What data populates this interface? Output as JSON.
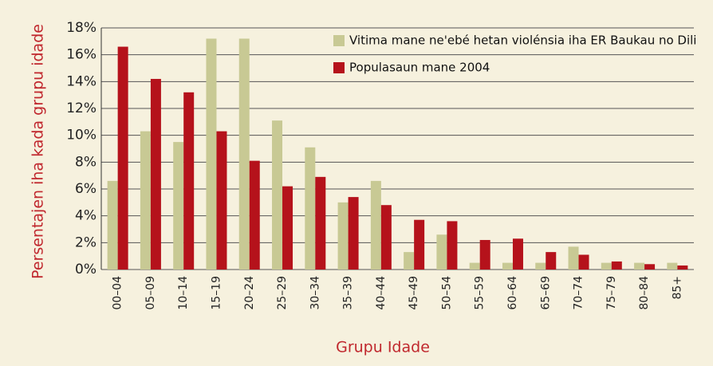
{
  "chart_data": {
    "type": "bar",
    "x_label": "Grupu Idade",
    "y_label": "Persentajen iha kada grupu idade",
    "categories": [
      "00–04",
      "05–09",
      "10–14",
      "15–19",
      "20–24",
      "25–29",
      "30–34",
      "35–39",
      "40–44",
      "45–49",
      "50–54",
      "55–59",
      "60–64",
      "65–69",
      "70–74",
      "75–79",
      "80–84",
      "85+"
    ],
    "series": [
      {
        "name": "Vitima mane ne'ebé hetan violénsia iha ER Baukau no Dili",
        "color": "#c8c994",
        "values": [
          6.6,
          10.3,
          9.5,
          17.2,
          17.2,
          11.1,
          9.1,
          5.0,
          6.6,
          1.3,
          2.6,
          0.5,
          0.5,
          0.5,
          1.7,
          0.5,
          0.5,
          0.5
        ]
      },
      {
        "name": "Populasaun mane 2004",
        "color": "#b5121b",
        "values": [
          16.6,
          14.2,
          13.2,
          10.3,
          8.1,
          6.2,
          6.9,
          5.4,
          4.8,
          3.7,
          3.6,
          2.2,
          2.3,
          1.3,
          1.1,
          0.6,
          0.4,
          0.3
        ]
      }
    ],
    "ylim": [
      0,
      18
    ],
    "yticks": [
      {
        "value": 0,
        "label": "0%"
      },
      {
        "value": 2,
        "label": "2%"
      },
      {
        "value": 4,
        "label": "4%"
      },
      {
        "value": 6,
        "label": "6%"
      },
      {
        "value": 8,
        "label": "8%"
      },
      {
        "value": 10,
        "label": "10%"
      },
      {
        "value": 12,
        "label": "12%"
      },
      {
        "value": 14,
        "label": "14%"
      },
      {
        "value": 16,
        "label": "16%"
      },
      {
        "value": 18,
        "label": "18%"
      }
    ],
    "grid": true,
    "legend": "top-right"
  }
}
